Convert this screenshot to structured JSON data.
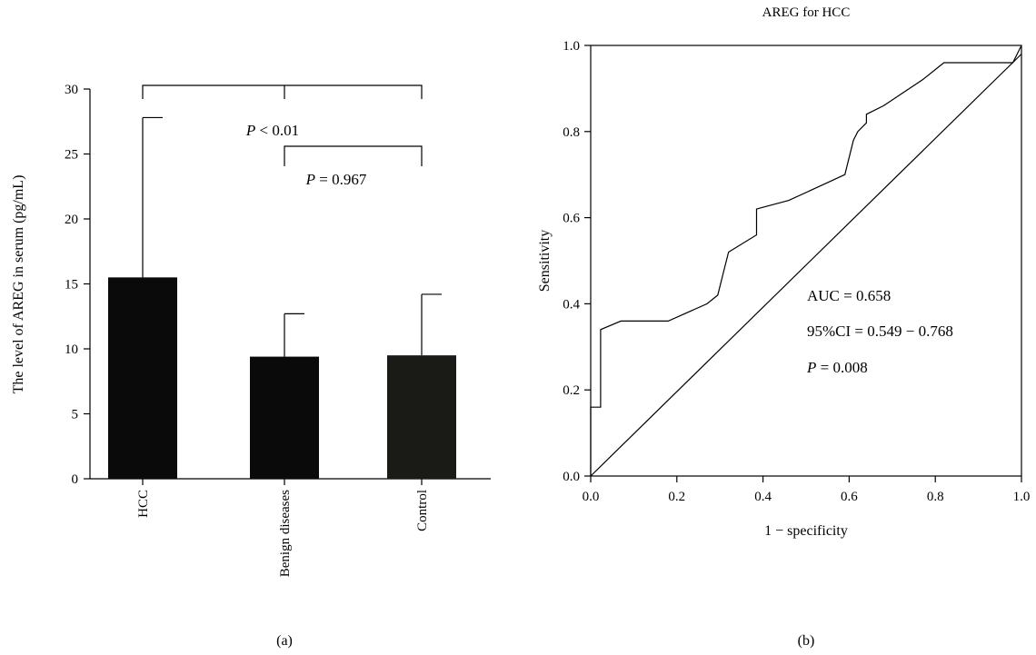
{
  "panel_a_label": "(a)",
  "panel_b_label": "(b)",
  "chart_data": [
    {
      "type": "bar",
      "title": "",
      "categories": [
        "HCC",
        "Benign diseases",
        "Control"
      ],
      "values": [
        15.5,
        9.4,
        9.5
      ],
      "errors": [
        12.3,
        3.3,
        4.7
      ],
      "xlabel": "",
      "ylabel": "The level of AREG in serum (pg/mL)",
      "ylim": [
        0,
        30
      ],
      "yticks": [
        "0",
        "5",
        "10",
        "15",
        "20",
        "25",
        "30"
      ],
      "colors": [
        "#0a0a0a",
        "#0a0a0a",
        "#1a1a16"
      ],
      "annotations": [
        {
          "text": "P < 0.01",
          "italic_part": "P",
          "compares": [
            "HCC",
            "Control"
          ]
        },
        {
          "text": "P = 0.967",
          "italic_part": "P",
          "compares": [
            "Benign diseases",
            "Control"
          ]
        }
      ],
      "grid": false
    },
    {
      "type": "line",
      "title": "AREG for HCC",
      "xlabel": "1 − specificity",
      "ylabel": "Sensitivity",
      "xlim": [
        0,
        1
      ],
      "ylim": [
        0,
        1
      ],
      "xticks": [
        "0.0",
        "0.2",
        "0.4",
        "0.6",
        "0.8",
        "1.0"
      ],
      "yticks": [
        "0.0",
        "0.2",
        "0.4",
        "0.6",
        "0.8",
        "1.0"
      ],
      "series": [
        {
          "x": [
            0.0,
            0.0,
            0.023,
            0.023,
            0.07,
            0.18,
            0.27,
            0.295,
            0.31,
            0.32,
            0.385,
            0.385,
            0.46,
            0.59,
            0.61,
            0.62,
            0.64,
            0.64,
            0.68,
            0.77,
            0.82,
            0.98,
            1.0
          ],
          "y": [
            0.0,
            0.16,
            0.16,
            0.34,
            0.36,
            0.36,
            0.4,
            0.42,
            0.48,
            0.52,
            0.56,
            0.62,
            0.64,
            0.7,
            0.78,
            0.8,
            0.82,
            0.84,
            0.86,
            0.92,
            0.96,
            0.96,
            1.0
          ]
        },
        {
          "x": [
            0.0,
            1.0
          ],
          "y": [
            0.0,
            0.98
          ]
        }
      ],
      "annotations": [
        "AUC = 0.658",
        "95%CI = 0.549 − 0.768",
        "P = 0.008"
      ],
      "grid": false
    }
  ]
}
